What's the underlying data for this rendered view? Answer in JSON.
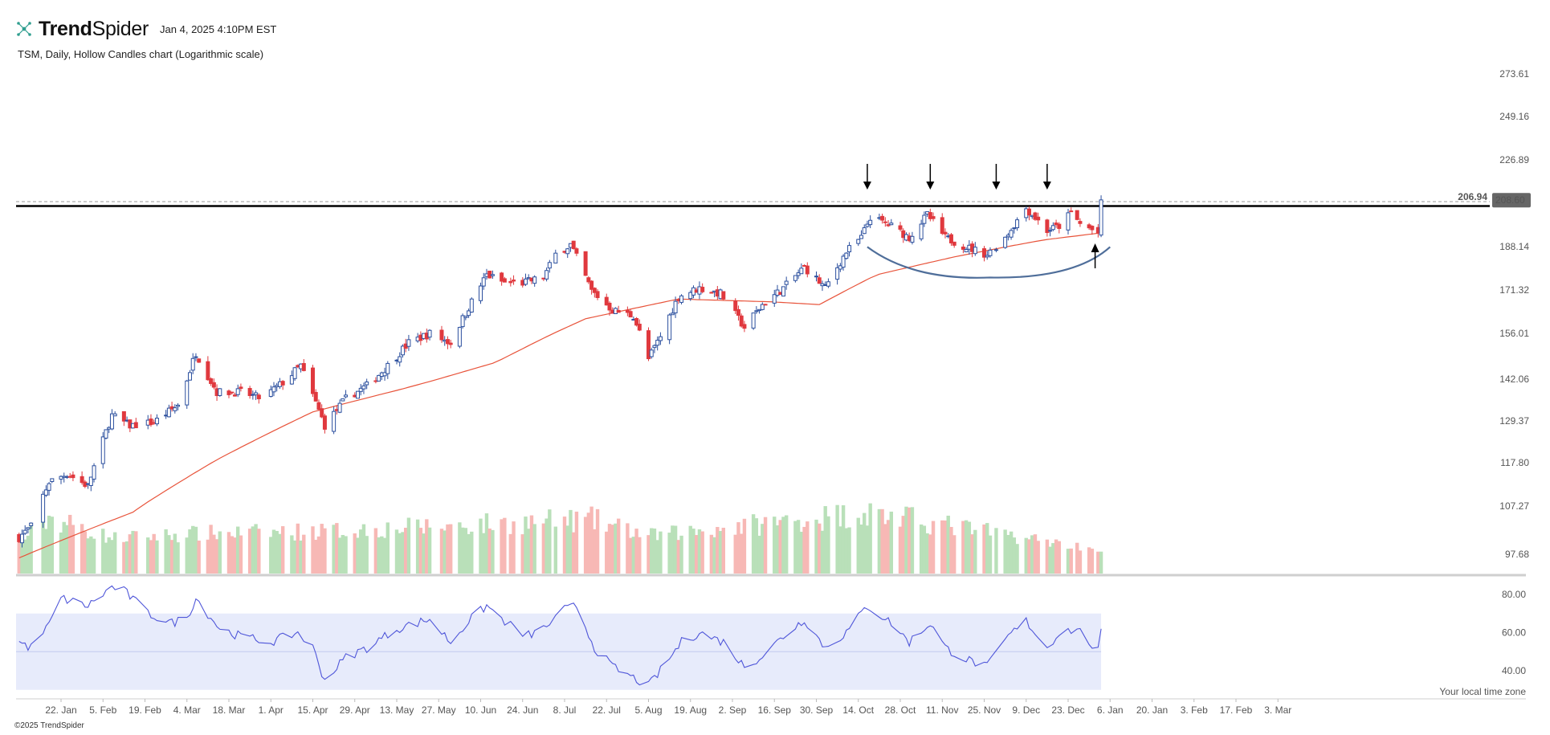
{
  "brand": {
    "logo_text_bold": "Trend",
    "logo_text_light": "Spider",
    "logo_icon": "spider-network-icon",
    "accent": "#2f9e8f"
  },
  "timestamp": "Jan 4, 2025 4:10PM EST",
  "title": "TSM, Daily, Hollow Candles chart (Logarithmic scale)",
  "footer": "©2025 TrendSpider",
  "timezone_note": "Your local time zone",
  "colors": {
    "up": "#2b4f9e",
    "down": "#e0393e",
    "vol_up": "#b9e0b9",
    "vol_down": "#f7b8b5",
    "ma": "#e8533a",
    "rsi": "#4f56d9",
    "rsi_band": "#e7ebfb",
    "curve": "#4f6e9a",
    "resistance": "#000000",
    "price_badge": "#666666"
  },
  "chart_data": [
    {
      "type": "candlestick",
      "title": "TSM, Daily, Hollow Candles chart (Logarithmic scale)",
      "scale": "log",
      "y_ticks": [
        97.68,
        107.27,
        117.8,
        129.37,
        142.06,
        156.01,
        171.32,
        188.14,
        206.94,
        226.89,
        249.16,
        273.61
      ],
      "y_tick_labels": [
        "97.68",
        "107.27",
        "117.80",
        "129.37",
        "142.06",
        "156.01",
        "171.32",
        "188.14",
        "226.89",
        "249.16",
        "273.61"
      ],
      "x_labels": [
        "22. Jan",
        "5. Feb",
        "19. Feb",
        "4. Mar",
        "18. Mar",
        "1. Apr",
        "15. Apr",
        "29. Apr",
        "13. May",
        "27. May",
        "10. Jun",
        "24. Jun",
        "8. Jul",
        "22. Jul",
        "5. Aug",
        "19. Aug",
        "2. Sep",
        "16. Sep",
        "30. Sep",
        "14. Oct",
        "28. Oct",
        "11. Nov",
        "25. Nov",
        "9. Dec",
        "23. Dec",
        "6. Jan",
        "20. Jan",
        "3. Feb",
        "17. Feb",
        "3. Mar"
      ],
      "x_label_dates": [
        "2024-01-22",
        "2024-02-05",
        "2024-02-19",
        "2024-03-04",
        "2024-03-18",
        "2024-04-01",
        "2024-04-15",
        "2024-04-29",
        "2024-05-13",
        "2024-05-27",
        "2024-06-10",
        "2024-06-24",
        "2024-07-08",
        "2024-07-22",
        "2024-08-05",
        "2024-08-19",
        "2024-09-02",
        "2024-09-16",
        "2024-09-30",
        "2024-10-14",
        "2024-10-28",
        "2024-11-11",
        "2024-11-25",
        "2024-12-09",
        "2024-12-23",
        "2025-01-06",
        "2025-01-20",
        "2025-02-03",
        "2025-02-17",
        "2025-03-03"
      ],
      "close_anchors": [
        [
          "2024-01-08",
          101
        ],
        [
          "2024-01-12",
          103
        ],
        [
          "2024-01-18",
          113
        ],
        [
          "2024-01-24",
          115
        ],
        [
          "2024-01-31",
          112
        ],
        [
          "2024-02-08",
          131
        ],
        [
          "2024-02-14",
          128
        ],
        [
          "2024-02-22",
          129
        ],
        [
          "2024-03-01",
          134
        ],
        [
          "2024-03-07",
          150
        ],
        [
          "2024-03-14",
          138
        ],
        [
          "2024-03-22",
          138
        ],
        [
          "2024-03-29",
          136
        ],
        [
          "2024-04-05",
          141
        ],
        [
          "2024-04-11",
          146
        ],
        [
          "2024-04-19",
          128
        ],
        [
          "2024-04-26",
          136
        ],
        [
          "2024-05-03",
          140
        ],
        [
          "2024-05-10",
          146
        ],
        [
          "2024-05-17",
          153
        ],
        [
          "2024-05-24",
          156
        ],
        [
          "2024-05-31",
          153
        ],
        [
          "2024-06-06",
          165
        ],
        [
          "2024-06-12",
          177
        ],
        [
          "2024-06-18",
          174
        ],
        [
          "2024-06-24",
          174
        ],
        [
          "2024-07-01",
          176
        ],
        [
          "2024-07-05",
          185
        ],
        [
          "2024-07-10",
          189
        ],
        [
          "2024-07-17",
          171
        ],
        [
          "2024-07-24",
          164
        ],
        [
          "2024-07-31",
          162
        ],
        [
          "2024-08-05",
          148
        ],
        [
          "2024-08-09",
          155
        ],
        [
          "2024-08-15",
          169
        ],
        [
          "2024-08-22",
          172
        ],
        [
          "2024-08-29",
          170
        ],
        [
          "2024-09-06",
          158
        ],
        [
          "2024-09-12",
          166
        ],
        [
          "2024-09-19",
          172
        ],
        [
          "2024-09-26",
          180
        ],
        [
          "2024-10-03",
          172
        ],
        [
          "2024-10-10",
          186
        ],
        [
          "2024-10-15",
          192
        ],
        [
          "2024-10-18",
          201
        ],
        [
          "2024-10-25",
          197
        ],
        [
          "2024-10-31",
          192
        ],
        [
          "2024-11-06",
          202
        ],
        [
          "2024-11-12",
          192
        ],
        [
          "2024-11-19",
          188
        ],
        [
          "2024-11-26",
          185
        ],
        [
          "2024-12-02",
          192
        ],
        [
          "2024-12-09",
          205
        ],
        [
          "2024-12-16",
          195
        ],
        [
          "2024-12-20",
          197
        ],
        [
          "2024-12-24",
          203
        ],
        [
          "2024-12-27",
          198
        ],
        [
          "2025-01-02",
          194
        ],
        [
          "2025-01-03",
          207
        ]
      ],
      "volume_anchors": [
        [
          "2024-01-08",
          0.35
        ],
        [
          "2024-01-18",
          0.9
        ],
        [
          "2024-02-08",
          0.45
        ],
        [
          "2024-03-07",
          0.55
        ],
        [
          "2024-04-19",
          0.6
        ],
        [
          "2024-07-17",
          0.85
        ],
        [
          "2024-08-05",
          0.5
        ],
        [
          "2024-10-17",
          1.0
        ],
        [
          "2025-01-03",
          0.2
        ]
      ],
      "sma_anchors": [
        [
          "2024-01-08",
          97
        ],
        [
          "2024-02-15",
          106
        ],
        [
          "2024-03-15",
          119
        ],
        [
          "2024-04-15",
          132
        ],
        [
          "2024-05-15",
          139
        ],
        [
          "2024-06-15",
          147
        ],
        [
          "2024-07-15",
          161
        ],
        [
          "2024-08-15",
          168
        ],
        [
          "2024-09-15",
          167
        ],
        [
          "2024-10-01",
          166
        ],
        [
          "2024-10-20",
          177
        ],
        [
          "2024-11-15",
          184
        ],
        [
          "2024-12-15",
          191
        ],
        [
          "2025-01-03",
          194
        ]
      ],
      "resistance_level": 206.94,
      "last_price": 208.6,
      "price_badge": "208.60",
      "resistance_label": "206.94",
      "cup_curve": {
        "start": [
          "2024-10-17",
          188
        ],
        "bottom": [
          "2024-11-27",
          176
        ],
        "end": [
          "2025-01-06",
          188
        ]
      },
      "markers": [
        {
          "date": "2024-10-17",
          "direction": "down"
        },
        {
          "date": "2024-11-07",
          "direction": "down"
        },
        {
          "date": "2024-11-29",
          "direction": "down"
        },
        {
          "date": "2024-12-16",
          "direction": "down"
        },
        {
          "date": "2025-01-01",
          "direction": "up"
        }
      ]
    },
    {
      "type": "line",
      "title": "",
      "y_ticks": [
        40,
        60,
        80
      ],
      "y_tick_labels": [
        "40.00",
        "60.00",
        "80.00"
      ],
      "band": [
        30,
        70
      ],
      "midline": 50,
      "ylim": [
        28,
        86
      ],
      "rsi_anchors": [
        [
          "2024-01-08",
          55
        ],
        [
          "2024-01-12",
          52
        ],
        [
          "2024-01-18",
          64
        ],
        [
          "2024-01-22",
          78
        ],
        [
          "2024-01-31",
          74
        ],
        [
          "2024-02-08",
          84
        ],
        [
          "2024-02-12",
          82
        ],
        [
          "2024-02-20",
          70
        ],
        [
          "2024-02-28",
          65
        ],
        [
          "2024-03-04",
          68
        ],
        [
          "2024-03-07",
          78
        ],
        [
          "2024-03-11",
          70
        ],
        [
          "2024-03-15",
          62
        ],
        [
          "2024-03-22",
          58
        ],
        [
          "2024-04-01",
          55
        ],
        [
          "2024-04-10",
          60
        ],
        [
          "2024-04-15",
          52
        ],
        [
          "2024-04-19",
          35
        ],
        [
          "2024-04-26",
          47
        ],
        [
          "2024-05-03",
          52
        ],
        [
          "2024-05-13",
          62
        ],
        [
          "2024-05-24",
          67
        ],
        [
          "2024-05-31",
          55
        ],
        [
          "2024-06-06",
          66
        ],
        [
          "2024-06-12",
          74
        ],
        [
          "2024-06-18",
          66
        ],
        [
          "2024-06-25",
          58
        ],
        [
          "2024-07-01",
          62
        ],
        [
          "2024-07-08",
          72
        ],
        [
          "2024-07-12",
          74
        ],
        [
          "2024-07-18",
          52
        ],
        [
          "2024-07-24",
          42
        ],
        [
          "2024-08-05",
          32
        ],
        [
          "2024-08-09",
          40
        ],
        [
          "2024-08-16",
          55
        ],
        [
          "2024-08-22",
          60
        ],
        [
          "2024-08-30",
          55
        ],
        [
          "2024-09-06",
          42
        ],
        [
          "2024-09-12",
          48
        ],
        [
          "2024-09-19",
          58
        ],
        [
          "2024-09-26",
          67
        ],
        [
          "2024-10-03",
          52
        ],
        [
          "2024-10-10",
          60
        ],
        [
          "2024-10-17",
          74
        ],
        [
          "2024-10-25",
          65
        ],
        [
          "2024-10-31",
          55
        ],
        [
          "2024-11-07",
          65
        ],
        [
          "2024-11-12",
          52
        ],
        [
          "2024-11-19",
          46
        ],
        [
          "2024-11-26",
          42
        ],
        [
          "2024-12-03",
          58
        ],
        [
          "2024-12-09",
          66
        ],
        [
          "2024-12-16",
          52
        ],
        [
          "2024-12-20",
          60
        ],
        [
          "2024-12-26",
          62
        ],
        [
          "2025-01-02",
          50
        ],
        [
          "2025-01-03",
          60
        ]
      ]
    }
  ]
}
